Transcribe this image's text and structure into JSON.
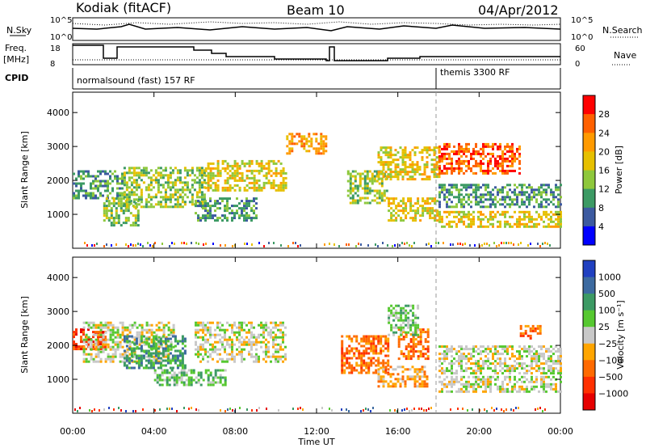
{
  "header": {
    "station": "Kodiak (fitACF)",
    "beam": "Beam 10",
    "date": "04/Apr/2012"
  },
  "strip": {
    "nsky_label": "N.Sky",
    "nsky_ticks": [
      "10^5",
      "10^0"
    ],
    "nsearch_label": "N.Search",
    "nsearch_ticks": [
      "10^5",
      "10^0"
    ],
    "freq_label_1": "Freq.",
    "freq_label_2": "[MHz]",
    "freq_ticks": [
      "18",
      "8"
    ],
    "nave_label": "Nave",
    "nave_ticks": [
      "60",
      "0"
    ],
    "cpid_label": "CPID",
    "cpid_segments": [
      {
        "label": "normalsound (fast) 157 RF",
        "start_hour": 0
      },
      {
        "label": "themis 3300 RF",
        "start_hour": 18
      }
    ]
  },
  "chart_data": [
    {
      "type": "heatmap",
      "name": "power",
      "ylabel": "Slant Range [km]",
      "ylim": [
        0,
        4600
      ],
      "yticks": [
        1000,
        2000,
        3000,
        4000
      ],
      "xlim": [
        0,
        24
      ],
      "colorbar": {
        "label": "Power [dB]",
        "ticks": [
          "28",
          "24",
          "20",
          "16",
          "12",
          "8",
          "4"
        ],
        "colors": [
          "#ff0000",
          "#ff6000",
          "#ff9a00",
          "#e6c000",
          "#8ec83c",
          "#3c9a64",
          "#3c5aa0",
          "#0000ff"
        ]
      },
      "regions": [
        {
          "x": [
            0,
            2.5
          ],
          "y": [
            1500,
            2300
          ],
          "level": 5
        },
        {
          "x": [
            1.5,
            3.2
          ],
          "y": [
            700,
            1500
          ],
          "level": 4
        },
        {
          "x": [
            2.5,
            6.5
          ],
          "y": [
            1200,
            2400
          ],
          "level": 4
        },
        {
          "x": [
            6,
            9
          ],
          "y": [
            800,
            1500
          ],
          "level": 5
        },
        {
          "x": [
            6.5,
            10.5
          ],
          "y": [
            1700,
            2600
          ],
          "level": 3
        },
        {
          "x": [
            10.5,
            12.5
          ],
          "y": [
            2800,
            3400
          ],
          "level": 2
        },
        {
          "x": [
            13.5,
            15.5
          ],
          "y": [
            1300,
            2300
          ],
          "level": 4
        },
        {
          "x": [
            15.5,
            18
          ],
          "y": [
            800,
            1500
          ],
          "level": 3
        },
        {
          "x": [
            15,
            18
          ],
          "y": [
            2000,
            3000
          ],
          "level": 3
        },
        {
          "x": [
            18,
            24
          ],
          "y": [
            1200,
            1900
          ],
          "level": 5
        },
        {
          "x": [
            18,
            24
          ],
          "y": [
            600,
            1100
          ],
          "level": 3
        },
        {
          "x": [
            18,
            22
          ],
          "y": [
            2200,
            3100
          ],
          "level": 1
        }
      ]
    },
    {
      "type": "heatmap",
      "name": "velocity",
      "ylabel": "Slant Range [km]",
      "xlabel": "Time UT",
      "ylim": [
        0,
        4600
      ],
      "yticks": [
        1000,
        2000,
        3000,
        4000
      ],
      "xlim": [
        0,
        24
      ],
      "xticks": [
        "00:00",
        "04:00",
        "08:00",
        "12:00",
        "16:00",
        "20:00",
        "00:00"
      ],
      "colorbar": {
        "label": "Velocity [m s⁻¹]",
        "ticks": [
          "1000",
          "500",
          "100",
          "25",
          "−25",
          "−100",
          "−500",
          "−1000"
        ],
        "colors": [
          "#2040c0",
          "#3c6aa0",
          "#3c9a64",
          "#56c830",
          "#c8c8c8",
          "#ffa500",
          "#ff6a00",
          "#ff3000",
          "#e60000"
        ]
      },
      "regions": [
        {
          "x": [
            0,
            1.6
          ],
          "y": [
            1900,
            2500
          ],
          "level": 7
        },
        {
          "x": [
            0.5,
            5
          ],
          "y": [
            1500,
            2700
          ],
          "level": 4
        },
        {
          "x": [
            2.5,
            5.5
          ],
          "y": [
            1300,
            2300
          ],
          "level": 2
        },
        {
          "x": [
            4,
            7.5
          ],
          "y": [
            800,
            1300
          ],
          "level": 3
        },
        {
          "x": [
            6,
            10.5
          ],
          "y": [
            1500,
            2700
          ],
          "level": 4
        },
        {
          "x": [
            13.2,
            15.5
          ],
          "y": [
            1200,
            2300
          ],
          "level": 6
        },
        {
          "x": [
            15,
            17.5
          ],
          "y": [
            800,
            1400
          ],
          "level": 5
        },
        {
          "x": [
            16,
            17.5
          ],
          "y": [
            1600,
            2500
          ],
          "level": 6
        },
        {
          "x": [
            15.5,
            17
          ],
          "y": [
            2300,
            3200
          ],
          "level": 3
        },
        {
          "x": [
            18,
            24
          ],
          "y": [
            1200,
            2000
          ],
          "level": 4
        },
        {
          "x": [
            18,
            24
          ],
          "y": [
            600,
            1100
          ],
          "level": 4
        },
        {
          "x": [
            22,
            23
          ],
          "y": [
            2200,
            2600
          ],
          "level": 6
        }
      ]
    }
  ]
}
